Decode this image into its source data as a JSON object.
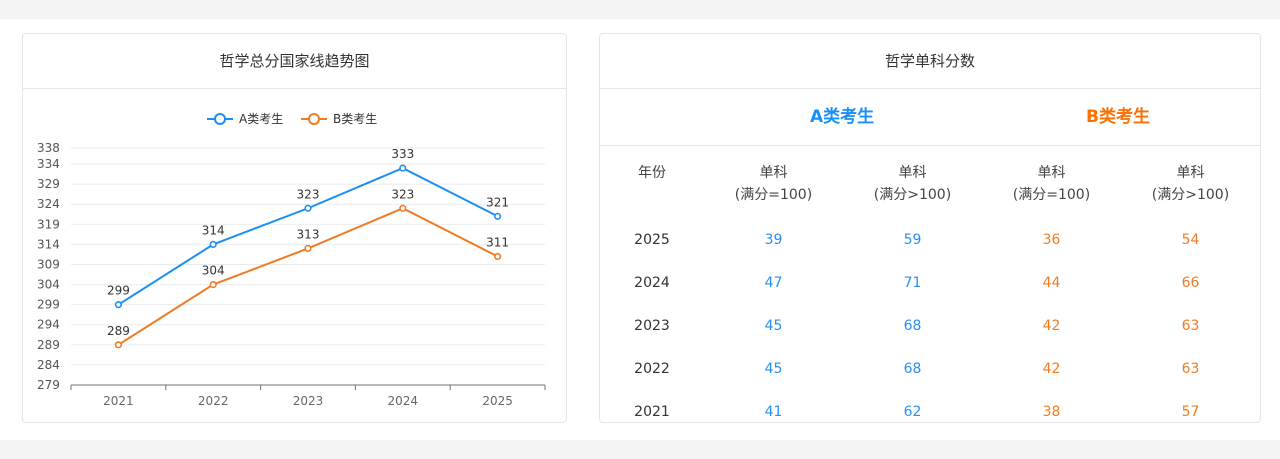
{
  "left_card": {
    "title": "哲学总分国家线趋势图"
  },
  "right_card": {
    "title": "哲学单科分数",
    "group_a": "A类考生",
    "group_b": "B类考生",
    "headers": {
      "year": "年份",
      "col1_line1": "单科",
      "col1_line2": "(满分=100)",
      "col2_line1": "单科",
      "col2_line2": "(满分>100)",
      "col3_line1": "单科",
      "col3_line2": "(满分=100)",
      "col4_line1": "单科",
      "col4_line2": "(满分>100)"
    },
    "rows": [
      {
        "year": "2025",
        "a1": "39",
        "a2": "59",
        "b1": "36",
        "b2": "54"
      },
      {
        "year": "2024",
        "a1": "47",
        "a2": "71",
        "b1": "44",
        "b2": "66"
      },
      {
        "year": "2023",
        "a1": "45",
        "a2": "68",
        "b1": "42",
        "b2": "63"
      },
      {
        "year": "2022",
        "a1": "45",
        "a2": "68",
        "b1": "42",
        "b2": "63"
      },
      {
        "year": "2021",
        "a1": "41",
        "a2": "62",
        "b1": "38",
        "b2": "57"
      }
    ]
  },
  "colors": {
    "series_a": "#1c8ff2",
    "series_b": "#f07b23"
  },
  "chart_data": {
    "type": "line",
    "title": "哲学总分国家线趋势图",
    "categories": [
      "2021",
      "2022",
      "2023",
      "2024",
      "2025"
    ],
    "series": [
      {
        "name": "A类考生",
        "values": [
          299,
          314,
          323,
          333,
          321
        ]
      },
      {
        "name": "B类考生",
        "values": [
          289,
          304,
          313,
          323,
          311
        ]
      }
    ],
    "y_ticks": [
      279,
      284,
      289,
      294,
      299,
      304,
      309,
      314,
      319,
      324,
      329,
      334,
      338
    ],
    "ylim": [
      279,
      338
    ],
    "grid": true,
    "legend": "top-center"
  }
}
